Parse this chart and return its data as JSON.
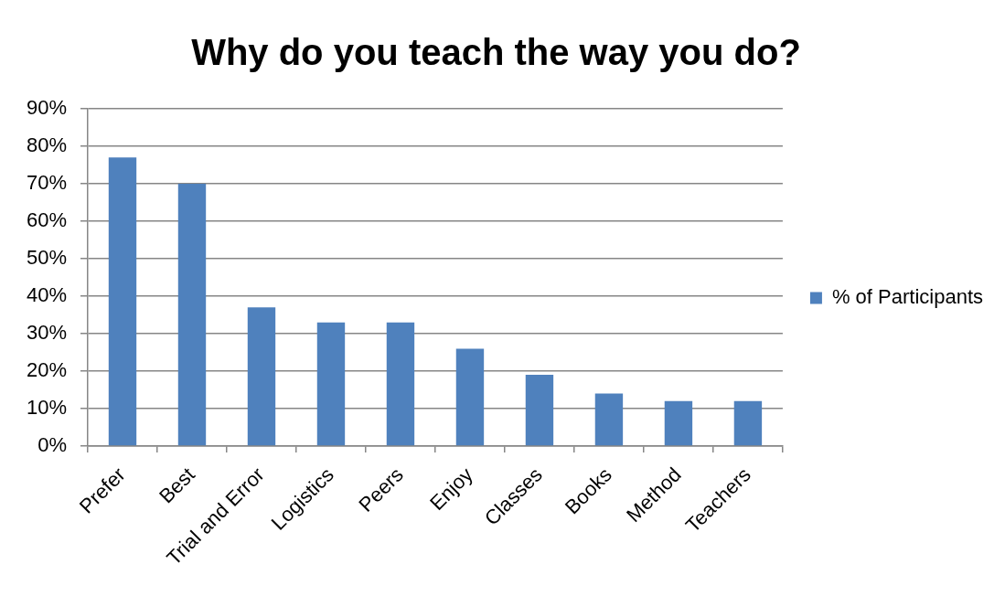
{
  "chart_data": {
    "type": "bar",
    "title": "Why do you teach the way you do?",
    "categories": [
      "Prefer",
      "Best",
      "Trial and Error",
      "Logistics",
      "Peers",
      "Enjoy",
      "Classes",
      "Books",
      "Method",
      "Teachers"
    ],
    "series": [
      {
        "name": "% of Participants",
        "color": "#4f81bd",
        "values": [
          77,
          70,
          37,
          33,
          33,
          26,
          19,
          14,
          12,
          12
        ]
      }
    ],
    "ylim": [
      0,
      90
    ],
    "yticks": [
      {
        "value": 0,
        "label": "0%"
      },
      {
        "value": 10,
        "label": "10%"
      },
      {
        "value": 20,
        "label": "20%"
      },
      {
        "value": 30,
        "label": "30%"
      },
      {
        "value": 40,
        "label": "40%"
      },
      {
        "value": 50,
        "label": "50%"
      },
      {
        "value": 60,
        "label": "60%"
      },
      {
        "value": 70,
        "label": "70%"
      },
      {
        "value": 80,
        "label": "80%"
      },
      {
        "value": 90,
        "label": "90%"
      }
    ],
    "grid": "y",
    "legend": "right"
  }
}
